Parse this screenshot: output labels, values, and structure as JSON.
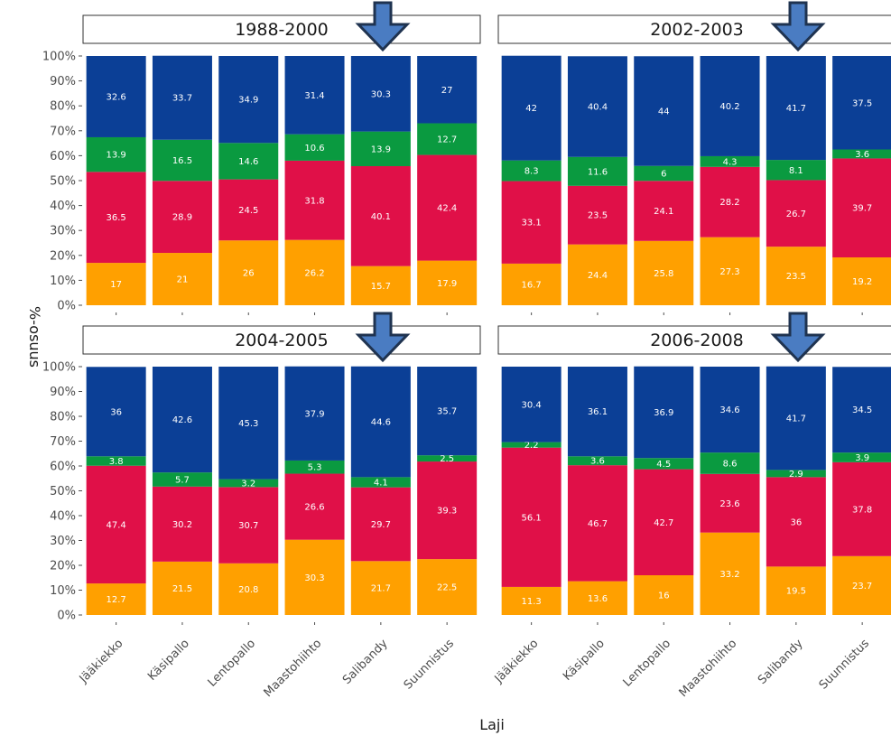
{
  "chart_data": {
    "type": "bar",
    "stacked": true,
    "xlabel": "Laji",
    "ylabel": "%-osuus",
    "ylim": [
      0,
      100
    ],
    "yticks": [
      "0%",
      "10%",
      "20%",
      "30%",
      "40%",
      "50%",
      "60%",
      "70%",
      "80%",
      "90%",
      "100%"
    ],
    "categories": [
      "Jääkiekko",
      "Käsipallo",
      "Lentopallo",
      "Maastohiihto",
      "Salibandy",
      "Suunnistus"
    ],
    "colors": {
      "orange": "#FFA000",
      "red": "#E01048",
      "green": "#0A9A40",
      "blue": "#0B3F96"
    },
    "arrow_color": "#4A7CC2",
    "panels": [
      {
        "title": "1988-2000",
        "series": [
          {
            "color": "orange",
            "values": [
              17,
              21,
              26,
              26.2,
              15.7,
              17.9
            ]
          },
          {
            "color": "red",
            "values": [
              36.5,
              28.9,
              24.5,
              31.8,
              40.1,
              42.4
            ]
          },
          {
            "color": "green",
            "values": [
              13.9,
              16.5,
              14.6,
              10.6,
              13.9,
              12.7
            ]
          },
          {
            "color": "blue",
            "values": [
              32.6,
              33.7,
              34.9,
              31.4,
              30.3,
              27
            ]
          }
        ]
      },
      {
        "title": "2002-2003",
        "series": [
          {
            "color": "orange",
            "values": [
              16.7,
              24.4,
              25.8,
              27.3,
              23.5,
              19.2
            ]
          },
          {
            "color": "red",
            "values": [
              33.1,
              23.5,
              24.1,
              28.2,
              26.7,
              39.7
            ]
          },
          {
            "color": "green",
            "values": [
              8.3,
              11.6,
              6,
              4.3,
              8.1,
              3.6
            ]
          },
          {
            "color": "blue",
            "values": [
              42,
              40.4,
              44,
              40.2,
              41.7,
              37.5
            ]
          }
        ]
      },
      {
        "title": "2004-2005",
        "series": [
          {
            "color": "orange",
            "values": [
              12.7,
              21.5,
              20.8,
              30.3,
              21.7,
              22.5
            ]
          },
          {
            "color": "red",
            "values": [
              47.4,
              30.2,
              30.7,
              26.6,
              29.7,
              39.3
            ]
          },
          {
            "color": "green",
            "values": [
              3.8,
              5.7,
              3.2,
              5.3,
              4.1,
              2.5
            ]
          },
          {
            "color": "blue",
            "values": [
              36,
              42.6,
              45.3,
              37.9,
              44.6,
              35.7
            ]
          }
        ]
      },
      {
        "title": "2006-2008",
        "series": [
          {
            "color": "orange",
            "values": [
              11.3,
              13.6,
              16,
              33.2,
              19.5,
              23.7
            ]
          },
          {
            "color": "red",
            "values": [
              56.1,
              46.7,
              42.7,
              23.6,
              36,
              37.8
            ]
          },
          {
            "color": "green",
            "values": [
              2.2,
              3.6,
              4.5,
              8.6,
              2.9,
              3.9
            ]
          },
          {
            "color": "blue",
            "values": [
              30.4,
              36.1,
              36.9,
              34.6,
              41.7,
              34.5
            ]
          }
        ]
      }
    ]
  }
}
